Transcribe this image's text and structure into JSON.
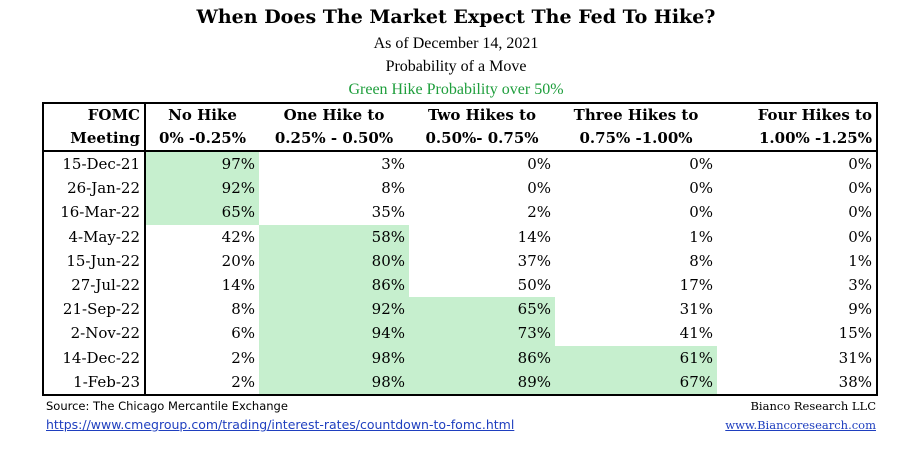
{
  "chart_data": {
    "type": "table",
    "title": "When Does The Market Expect The Fed To Hike?",
    "subtitle_date": "As of December 14, 2021",
    "subtitle": "Probability of a Move",
    "highlight_note": "Green Hike Probability over 50%",
    "highlight_color": "#c6efce",
    "highlight_text_color": "#1f7a33",
    "note_color": "#1e9e3c",
    "header_row1": [
      "FOMC",
      "No Hike",
      "One Hike to",
      "Two Hikes to",
      "Three Hikes to",
      "Four Hikes to"
    ],
    "header_row2": [
      "Meeting",
      "0% -0.25%",
      "0.25% - 0.50%",
      "0.50%- 0.75%",
      "0.75% -1.00%",
      "1.00% -1.25%"
    ],
    "rows": [
      {
        "meeting": "15-Dec-21",
        "values": [
          "97%",
          "3%",
          "0%",
          "0%",
          "0%"
        ],
        "highlight": [
          true,
          false,
          false,
          false,
          false
        ]
      },
      {
        "meeting": "26-Jan-22",
        "values": [
          "92%",
          "8%",
          "0%",
          "0%",
          "0%"
        ],
        "highlight": [
          true,
          false,
          false,
          false,
          false
        ]
      },
      {
        "meeting": "16-Mar-22",
        "values": [
          "65%",
          "35%",
          "2%",
          "0%",
          "0%"
        ],
        "highlight": [
          true,
          false,
          false,
          false,
          false
        ]
      },
      {
        "meeting": "4-May-22",
        "values": [
          "42%",
          "58%",
          "14%",
          "1%",
          "0%"
        ],
        "highlight": [
          false,
          true,
          false,
          false,
          false
        ]
      },
      {
        "meeting": "15-Jun-22",
        "values": [
          "20%",
          "80%",
          "37%",
          "8%",
          "1%"
        ],
        "highlight": [
          false,
          true,
          false,
          false,
          false
        ]
      },
      {
        "meeting": "27-Jul-22",
        "values": [
          "14%",
          "86%",
          "50%",
          "17%",
          "3%"
        ],
        "highlight": [
          false,
          true,
          false,
          false,
          false
        ]
      },
      {
        "meeting": "21-Sep-22",
        "values": [
          "8%",
          "92%",
          "65%",
          "31%",
          "9%"
        ],
        "highlight": [
          false,
          true,
          true,
          false,
          false
        ]
      },
      {
        "meeting": "2-Nov-22",
        "values": [
          "6%",
          "94%",
          "73%",
          "41%",
          "15%"
        ],
        "highlight": [
          false,
          true,
          true,
          false,
          false
        ]
      },
      {
        "meeting": "14-Dec-22",
        "values": [
          "2%",
          "98%",
          "86%",
          "61%",
          "31%"
        ],
        "highlight": [
          false,
          true,
          true,
          true,
          false
        ]
      },
      {
        "meeting": "1-Feb-23",
        "values": [
          "2%",
          "98%",
          "89%",
          "67%",
          "38%"
        ],
        "highlight": [
          false,
          true,
          true,
          true,
          false
        ]
      }
    ]
  },
  "footer": {
    "source": "Source: The Chicago Mercantile Exchange",
    "firm": "Bianco Research LLC",
    "source_url": "https://www.cmegroup.com/trading/interest-rates/countdown-to-fomc.html",
    "firm_url": "www.Biancoresearch.com",
    "link_color": "#1f3fbf"
  }
}
